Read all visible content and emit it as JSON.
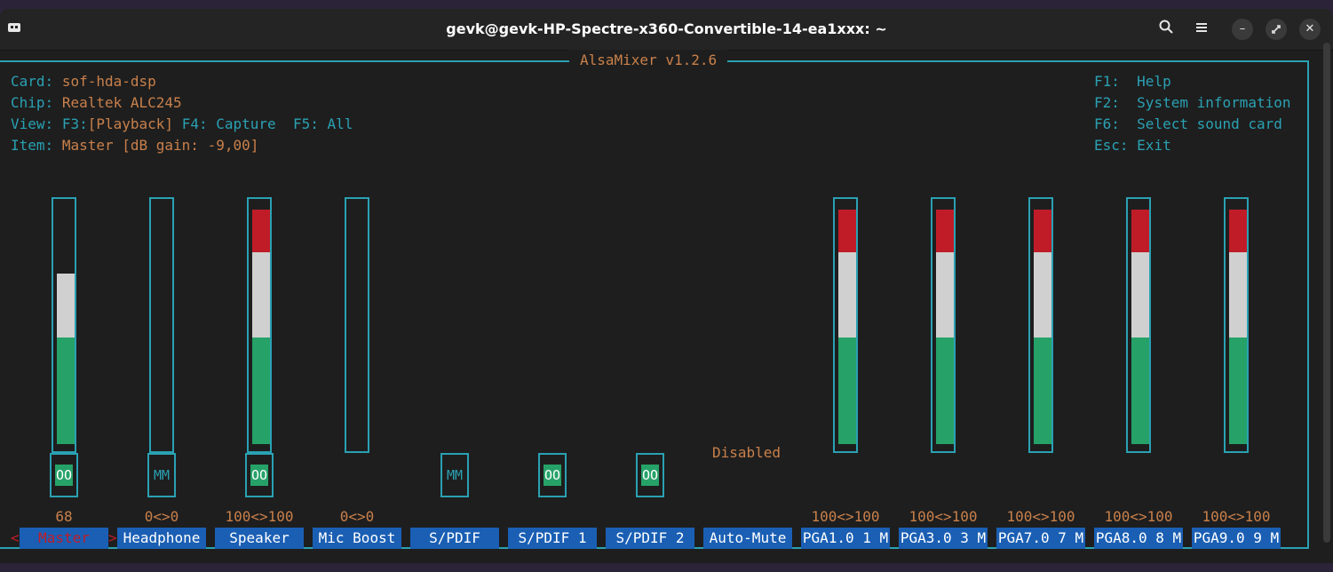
{
  "window": {
    "title": "gevk@gevk-HP-Spectre-x360-Convertible-14-ea1xxx: ~"
  },
  "app": {
    "name": "AlsaMixer v1.2.6",
    "card_label": "Card:",
    "card": "sof-hda-dsp",
    "chip_label": "Chip:",
    "chip": "Realtek ALC245",
    "view_label": "View:",
    "view_f3": "F3:",
    "view_playback": "[Playback]",
    "view_f4": "F4:",
    "view_capture": "Capture",
    "view_f5": "F5:",
    "view_all": "All",
    "item_label": "Item:",
    "item": "Master [dB gain: -9,00]"
  },
  "help": [
    {
      "key": "F1:",
      "label": "Help"
    },
    {
      "key": "F2:",
      "label": "System information"
    },
    {
      "key": "F6:",
      "label": "Select sound card"
    },
    {
      "key": "Esc:",
      "label": "Exit"
    }
  ],
  "selected_control": "Master",
  "controls": [
    {
      "name": "Master",
      "value": "68",
      "level": 0.68,
      "switch": "OO",
      "switch_on": true,
      "selected": true
    },
    {
      "name": "Headphone",
      "value": "0<>0",
      "level": 0,
      "switch": "MM",
      "switch_on": false
    },
    {
      "name": "Speaker",
      "value": "100<>100",
      "level": 1.0,
      "switch": "OO",
      "switch_on": true
    },
    {
      "name": "Mic Boost",
      "value": "0<>0",
      "level": 0
    },
    {
      "name": "S/PDIF",
      "switch": "MM",
      "switch_on": false
    },
    {
      "name": "S/PDIF 1",
      "switch": "OO",
      "switch_on": true
    },
    {
      "name": "S/PDIF 2",
      "switch": "OO",
      "switch_on": true
    },
    {
      "name": "Auto-Mute",
      "status": "Disabled"
    },
    {
      "name": "PGA1.0 1 M",
      "value": "100<>100",
      "level": 1.0
    },
    {
      "name": "PGA3.0 3 M",
      "value": "100<>100",
      "level": 1.0
    },
    {
      "name": "PGA7.0 7 M",
      "value": "100<>100",
      "level": 1.0
    },
    {
      "name": "PGA8.0 8 M",
      "value": "100<>100",
      "level": 1.0
    },
    {
      "name": "PGA9.0 9 M",
      "value": "100<>100",
      "level": 1.0
    }
  ],
  "colors": {
    "frame": "#2aa1b3",
    "text_accent": "#c9804b",
    "level_low": "#26a269",
    "level_mid": "#d0d0d0",
    "level_high": "#c01c28",
    "label_bg": "#1a5fb4"
  },
  "icons": {
    "new_tab": "new-tab-icon",
    "search": "search-icon",
    "menu": "hamburger-menu-icon",
    "minimize": "minimize-icon",
    "maximize": "maximize-icon",
    "close": "close-icon"
  }
}
